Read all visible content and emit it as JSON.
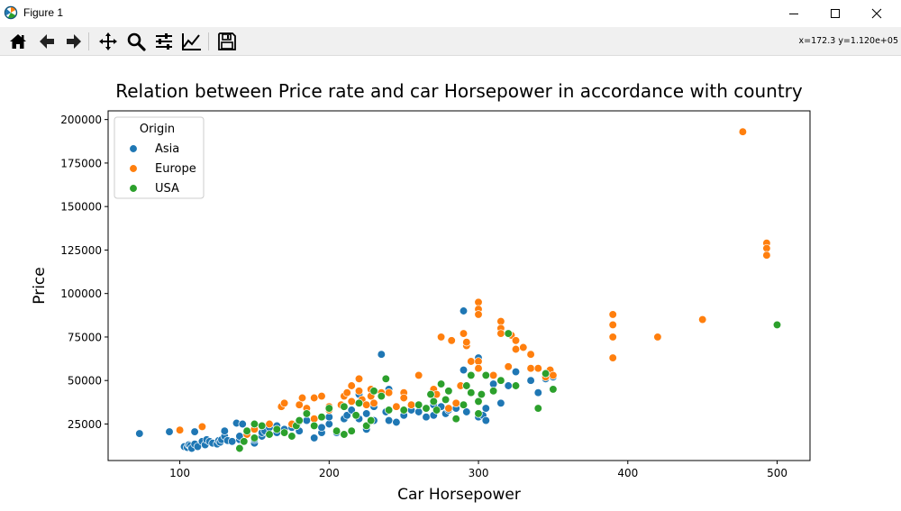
{
  "window": {
    "title": "Figure 1",
    "app_icon": "matplotlib-icon",
    "controls": [
      "minimize-icon",
      "maximize-icon",
      "close-icon"
    ]
  },
  "toolbar": {
    "tools": [
      "home-icon",
      "back-arrow-icon",
      "forward-arrow-icon",
      "pan-icon",
      "zoom-icon",
      "configure-subplots-icon",
      "edit-axis-icon",
      "save-icon"
    ],
    "coords": "x=172.3 y=1.120e+05"
  },
  "chart_data": {
    "type": "scatter",
    "title": "Relation between Price rate and car Horsepower in accordance with country",
    "xlabel": "Car Horsepower",
    "ylabel": "Price",
    "xlim": [
      52,
      522
    ],
    "ylim": [
      4000,
      205000
    ],
    "xticks": [
      100,
      200,
      300,
      400,
      500
    ],
    "yticks": [
      25000,
      50000,
      75000,
      100000,
      125000,
      150000,
      175000,
      200000
    ],
    "grid": false,
    "legend": {
      "title": "Origin",
      "placement": "top-left"
    },
    "series": [
      {
        "name": "Asia",
        "color": "#1f77b4",
        "points": [
          [
            73,
            19500
          ],
          [
            93,
            20500
          ],
          [
            103,
            12000
          ],
          [
            105,
            11500
          ],
          [
            106,
            13000
          ],
          [
            107,
            12500
          ],
          [
            108,
            11000
          ],
          [
            110,
            13500
          ],
          [
            110,
            20500
          ],
          [
            112,
            12000
          ],
          [
            115,
            15000
          ],
          [
            117,
            13000
          ],
          [
            118,
            16000
          ],
          [
            120,
            15000
          ],
          [
            122,
            14000
          ],
          [
            125,
            13500
          ],
          [
            126,
            15500
          ],
          [
            127,
            14500
          ],
          [
            128,
            16000
          ],
          [
            130,
            18000
          ],
          [
            130,
            21000
          ],
          [
            132,
            15500
          ],
          [
            135,
            15000
          ],
          [
            138,
            25500
          ],
          [
            140,
            16000
          ],
          [
            140,
            18000
          ],
          [
            142,
            25000
          ],
          [
            145,
            19000
          ],
          [
            150,
            14000
          ],
          [
            150,
            16000
          ],
          [
            155,
            18000
          ],
          [
            155,
            20000
          ],
          [
            157,
            21000
          ],
          [
            160,
            19000
          ],
          [
            160,
            23000
          ],
          [
            165,
            20000
          ],
          [
            165,
            24000
          ],
          [
            170,
            22000
          ],
          [
            175,
            23000
          ],
          [
            180,
            21000
          ],
          [
            180,
            26500
          ],
          [
            185,
            27000
          ],
          [
            190,
            17000
          ],
          [
            195,
            20000
          ],
          [
            195,
            23000
          ],
          [
            200,
            25000
          ],
          [
            200,
            29000
          ],
          [
            205,
            20000
          ],
          [
            210,
            28000
          ],
          [
            212,
            30000
          ],
          [
            215,
            33000
          ],
          [
            220,
            28000
          ],
          [
            220,
            42000
          ],
          [
            225,
            31000
          ],
          [
            225,
            22000
          ],
          [
            230,
            27000
          ],
          [
            230,
            35000
          ],
          [
            235,
            65000
          ],
          [
            238,
            32000
          ],
          [
            240,
            27000
          ],
          [
            240,
            45000
          ],
          [
            245,
            26000
          ],
          [
            250,
            30000
          ],
          [
            255,
            33000
          ],
          [
            260,
            32000
          ],
          [
            265,
            29000
          ],
          [
            270,
            30000
          ],
          [
            270,
            36000
          ],
          [
            275,
            35000
          ],
          [
            278,
            31000
          ],
          [
            280,
            33000
          ],
          [
            285,
            34000
          ],
          [
            290,
            56000
          ],
          [
            290,
            90000
          ],
          [
            292,
            32000
          ],
          [
            300,
            29000
          ],
          [
            300,
            63000
          ],
          [
            303,
            30000
          ],
          [
            305,
            34000
          ],
          [
            305,
            27000
          ],
          [
            310,
            48000
          ],
          [
            315,
            37000
          ],
          [
            320,
            47000
          ],
          [
            325,
            55000
          ],
          [
            335,
            50000
          ],
          [
            340,
            43000
          ],
          [
            345,
            51000
          ],
          [
            350,
            52000
          ]
        ]
      },
      {
        "name": "Europe",
        "color": "#ff7f0e",
        "points": [
          [
            100,
            21500
          ],
          [
            115,
            23500
          ],
          [
            145,
            19000
          ],
          [
            150,
            22000
          ],
          [
            160,
            25000
          ],
          [
            168,
            35000
          ],
          [
            170,
            37000
          ],
          [
            175,
            25000
          ],
          [
            180,
            36000
          ],
          [
            182,
            40000
          ],
          [
            185,
            34000
          ],
          [
            190,
            28000
          ],
          [
            190,
            40000
          ],
          [
            195,
            41000
          ],
          [
            200,
            33000
          ],
          [
            200,
            35000
          ],
          [
            208,
            36000
          ],
          [
            210,
            41000
          ],
          [
            212,
            43000
          ],
          [
            215,
            38000
          ],
          [
            215,
            47000
          ],
          [
            220,
            44000
          ],
          [
            220,
            51000
          ],
          [
            222,
            39000
          ],
          [
            225,
            36000
          ],
          [
            228,
            45000
          ],
          [
            228,
            41000
          ],
          [
            230,
            37000
          ],
          [
            235,
            43000
          ],
          [
            240,
            43000
          ],
          [
            245,
            35000
          ],
          [
            250,
            43000
          ],
          [
            250,
            40000
          ],
          [
            255,
            36000
          ],
          [
            260,
            53000
          ],
          [
            270,
            45000
          ],
          [
            272,
            42000
          ],
          [
            275,
            75000
          ],
          [
            280,
            34000
          ],
          [
            282,
            73000
          ],
          [
            285,
            37000
          ],
          [
            288,
            47000
          ],
          [
            290,
            77000
          ],
          [
            292,
            70000
          ],
          [
            292,
            72000
          ],
          [
            295,
            61000
          ],
          [
            300,
            95000
          ],
          [
            300,
            91000
          ],
          [
            300,
            88000
          ],
          [
            300,
            61000
          ],
          [
            300,
            57000
          ],
          [
            310,
            53000
          ],
          [
            315,
            84000
          ],
          [
            315,
            80000
          ],
          [
            315,
            77000
          ],
          [
            320,
            58000
          ],
          [
            322,
            76000
          ],
          [
            325,
            73000
          ],
          [
            325,
            68000
          ],
          [
            330,
            69000
          ],
          [
            335,
            65000
          ],
          [
            335,
            57000
          ],
          [
            340,
            57000
          ],
          [
            345,
            52000
          ],
          [
            348,
            56000
          ],
          [
            350,
            53000
          ],
          [
            390,
            88000
          ],
          [
            390,
            82000
          ],
          [
            390,
            75000
          ],
          [
            390,
            63000
          ],
          [
            420,
            75000
          ],
          [
            450,
            85000
          ],
          [
            477,
            193000
          ],
          [
            493,
            129000
          ],
          [
            493,
            126000
          ],
          [
            493,
            122000
          ]
        ]
      },
      {
        "name": "USA",
        "color": "#2ca02c",
        "points": [
          [
            140,
            11000
          ],
          [
            143,
            15000
          ],
          [
            145,
            21000
          ],
          [
            150,
            17000
          ],
          [
            150,
            25000
          ],
          [
            155,
            24000
          ],
          [
            160,
            19000
          ],
          [
            165,
            22000
          ],
          [
            170,
            20000
          ],
          [
            175,
            18000
          ],
          [
            178,
            24000
          ],
          [
            180,
            27000
          ],
          [
            185,
            31000
          ],
          [
            190,
            24000
          ],
          [
            195,
            29000
          ],
          [
            200,
            34000
          ],
          [
            205,
            21000
          ],
          [
            210,
            19000
          ],
          [
            210,
            35000
          ],
          [
            215,
            21000
          ],
          [
            218,
            30000
          ],
          [
            220,
            37000
          ],
          [
            225,
            24000
          ],
          [
            228,
            27000
          ],
          [
            230,
            44000
          ],
          [
            235,
            41000
          ],
          [
            238,
            51000
          ],
          [
            240,
            33000
          ],
          [
            250,
            33000
          ],
          [
            260,
            36000
          ],
          [
            265,
            34000
          ],
          [
            268,
            42000
          ],
          [
            270,
            38000
          ],
          [
            272,
            33000
          ],
          [
            275,
            48000
          ],
          [
            278,
            39000
          ],
          [
            280,
            44000
          ],
          [
            285,
            28000
          ],
          [
            290,
            36000
          ],
          [
            292,
            47000
          ],
          [
            295,
            53000
          ],
          [
            295,
            43000
          ],
          [
            300,
            31000
          ],
          [
            300,
            38000
          ],
          [
            302,
            42000
          ],
          [
            305,
            53000
          ],
          [
            310,
            44000
          ],
          [
            315,
            50000
          ],
          [
            320,
            77000
          ],
          [
            325,
            47000
          ],
          [
            340,
            34000
          ],
          [
            345,
            54000
          ],
          [
            350,
            45000
          ],
          [
            500,
            82000
          ]
        ]
      }
    ]
  }
}
